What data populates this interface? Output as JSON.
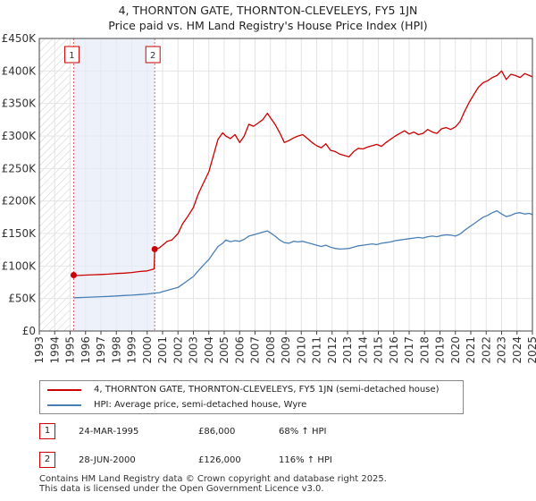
{
  "chart_data": {
    "type": "line",
    "title": "4, THORNTON GATE, THORNTON-CLEVELEYS, FY5 1JN",
    "subtitle": "Price paid vs. HM Land Registry's House Price Index (HPI)",
    "xlim": [
      1993,
      2025
    ],
    "ylim": [
      0,
      450000
    ],
    "x_ticks": [
      "1993",
      "1994",
      "1995",
      "1996",
      "1997",
      "1998",
      "1999",
      "2000",
      "2001",
      "2002",
      "2003",
      "2004",
      "2005",
      "2006",
      "2007",
      "2008",
      "2009",
      "2010",
      "2011",
      "2012",
      "2013",
      "2014",
      "2015",
      "2016",
      "2017",
      "2018",
      "2019",
      "2020",
      "2021",
      "2022",
      "2023",
      "2024",
      "2025"
    ],
    "y_tick_values": [
      0,
      50000,
      100000,
      150000,
      200000,
      250000,
      300000,
      350000,
      400000,
      450000
    ],
    "y_tick_labels": [
      "£0",
      "£50K",
      "£100K",
      "£150K",
      "£200K",
      "£250K",
      "£300K",
      "£350K",
      "£400K",
      "£450K"
    ],
    "hatched_before": 1995,
    "shaded_span": [
      1995.23,
      2000.49
    ],
    "series": [
      {
        "name": "4, THORNTON GATE, THORNTON-CLEVELEYS, FY5 1JN (semi-detached house)",
        "color": "#cc0000",
        "x": [
          1995.23,
          1995.5,
          1996.0,
          1996.5,
          1997.0,
          1997.5,
          1998.0,
          1998.5,
          1999.0,
          1999.5,
          2000.0,
          2000.45,
          2000.49,
          2000.8,
          2001.0,
          2001.3,
          2001.6,
          2002.0,
          2002.3,
          2002.6,
          2003.0,
          2003.3,
          2003.6,
          2004.0,
          2004.3,
          2004.6,
          2004.9,
          2005.1,
          2005.4,
          2005.7,
          2006.0,
          2006.3,
          2006.6,
          2006.9,
          2007.2,
          2007.5,
          2007.8,
          2008.0,
          2008.3,
          2008.6,
          2008.9,
          2009.2,
          2009.5,
          2009.8,
          2010.1,
          2010.4,
          2010.7,
          2011.0,
          2011.3,
          2011.6,
          2011.9,
          2012.2,
          2012.5,
          2012.8,
          2013.1,
          2013.4,
          2013.7,
          2014.0,
          2014.3,
          2014.6,
          2014.9,
          2015.2,
          2015.5,
          2015.8,
          2016.1,
          2016.4,
          2016.7,
          2017.0,
          2017.3,
          2017.6,
          2017.9,
          2018.2,
          2018.5,
          2018.8,
          2019.1,
          2019.4,
          2019.7,
          2020.0,
          2020.3,
          2020.6,
          2020.9,
          2021.2,
          2021.5,
          2021.8,
          2022.1,
          2022.4,
          2022.7,
          2023.0,
          2023.3,
          2023.6,
          2023.9,
          2024.2,
          2024.5,
          2024.8,
          2025.0
        ],
        "y": [
          86000,
          85500,
          86000,
          86500,
          87000,
          87500,
          88500,
          89000,
          90000,
          91500,
          92500,
          95500,
          126000,
          128000,
          132000,
          138000,
          140000,
          150000,
          165000,
          175000,
          190000,
          210000,
          225000,
          245000,
          270000,
          295000,
          305000,
          300000,
          296000,
          302000,
          290000,
          300000,
          318000,
          315000,
          320000,
          325000,
          335000,
          328000,
          318000,
          305000,
          290000,
          293000,
          297000,
          300000,
          302000,
          296000,
          290000,
          285000,
          282000,
          288000,
          278000,
          276000,
          272000,
          270000,
          268000,
          276000,
          281000,
          280000,
          283000,
          285000,
          287000,
          284000,
          290000,
          295000,
          300000,
          304000,
          308000,
          303000,
          306000,
          302000,
          304000,
          310000,
          306000,
          304000,
          311000,
          313000,
          310000,
          314000,
          322000,
          338000,
          352000,
          364000,
          375000,
          382000,
          385000,
          390000,
          393000,
          400000,
          387000,
          395000,
          393000,
          390000,
          396000,
          393000,
          391000
        ]
      },
      {
        "name": "HPI: Average price, semi-detached house, Wyre",
        "color": "#4a7fb5",
        "x": [
          1995.23,
          1995.5,
          1996.0,
          1996.5,
          1997.0,
          1997.5,
          1998.0,
          1998.5,
          1999.0,
          1999.5,
          2000.0,
          2000.49,
          2000.8,
          2001.0,
          2001.3,
          2001.6,
          2002.0,
          2002.3,
          2002.6,
          2003.0,
          2003.3,
          2003.6,
          2004.0,
          2004.3,
          2004.6,
          2004.9,
          2005.1,
          2005.4,
          2005.7,
          2006.0,
          2006.3,
          2006.6,
          2006.9,
          2007.2,
          2007.5,
          2007.8,
          2008.0,
          2008.3,
          2008.6,
          2008.9,
          2009.2,
          2009.5,
          2009.8,
          2010.1,
          2010.4,
          2010.7,
          2011.0,
          2011.3,
          2011.6,
          2011.9,
          2012.2,
          2012.5,
          2012.8,
          2013.1,
          2013.4,
          2013.7,
          2014.0,
          2014.3,
          2014.6,
          2014.9,
          2015.2,
          2015.5,
          2015.8,
          2016.1,
          2016.4,
          2016.7,
          2017.0,
          2017.3,
          2017.6,
          2017.9,
          2018.2,
          2018.5,
          2018.8,
          2019.1,
          2019.4,
          2019.7,
          2020.0,
          2020.3,
          2020.6,
          2020.9,
          2021.2,
          2021.5,
          2021.8,
          2022.1,
          2022.4,
          2022.7,
          2023.0,
          2023.3,
          2023.6,
          2023.9,
          2024.2,
          2024.5,
          2024.8,
          2025.0
        ],
        "y": [
          51000,
          51300,
          51800,
          52300,
          52800,
          53300,
          54000,
          54600,
          55200,
          56000,
          57000,
          58300,
          59000,
          60500,
          62500,
          64500,
          67000,
          72000,
          77000,
          84000,
          92000,
          100000,
          110000,
          120000,
          130000,
          135000,
          140000,
          137500,
          139000,
          138000,
          141000,
          146000,
          148000,
          150000,
          152000,
          154000,
          151000,
          146000,
          140000,
          136000,
          135000,
          138000,
          137000,
          138000,
          136000,
          134000,
          132000,
          130000,
          132000,
          129000,
          127000,
          126000,
          126500,
          127000,
          129000,
          131000,
          132000,
          133000,
          134000,
          133000,
          135000,
          136000,
          137000,
          139000,
          140000,
          141000,
          142000,
          143000,
          144000,
          143000,
          145000,
          146000,
          145000,
          147000,
          148000,
          147500,
          146000,
          149000,
          155000,
          160000,
          165000,
          170000,
          175000,
          178000,
          182000,
          185000,
          180000,
          176000,
          178000,
          181000,
          182000,
          180000,
          181000,
          179000
        ]
      }
    ],
    "markers": [
      {
        "label": "1",
        "x": 1995.23,
        "y": 86000
      },
      {
        "label": "2",
        "x": 2000.49,
        "y": 126000
      }
    ]
  },
  "legend": {
    "property_label": "4, THORNTON GATE, THORNTON-CLEVELEYS, FY5 1JN (semi-detached house)",
    "hpi_label": "HPI: Average price, semi-detached house, Wyre"
  },
  "transactions": [
    {
      "num": "1",
      "date": "24-MAR-1995",
      "price": "£86,000",
      "hpi": "68% ↑ HPI"
    },
    {
      "num": "2",
      "date": "28-JUN-2000",
      "price": "£126,000",
      "hpi": "116% ↑ HPI"
    }
  ],
  "footer": {
    "line1": "Contains HM Land Registry data © Crown copyright and database right 2025.",
    "line2": "This data is licensed under the Open Government Licence v3.0."
  }
}
